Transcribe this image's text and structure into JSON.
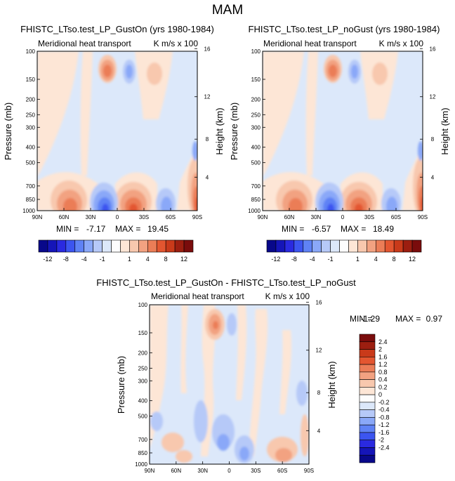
{
  "figure_title": "MAM",
  "chart_data": [
    {
      "type": "heatmap",
      "title": "FHISTC_LTso.test_LP_GustOn (yrs 1980-1984)",
      "subtitle_left": "Meridional heat transport",
      "subtitle_right": "K m/s x 100",
      "xlabel": "",
      "ylabel": "Pressure (mb)",
      "ylabel_right": "Height (km)",
      "x_ticks": [
        "90N",
        "60N",
        "30N",
        "0",
        "30S",
        "60S",
        "90S"
      ],
      "y_ticks": [
        "100",
        "150",
        "200",
        "250",
        "300",
        "400",
        "500",
        "700",
        "850",
        "1000"
      ],
      "height_ticks": [
        "16",
        "12",
        "8",
        "4"
      ],
      "stats": {
        "min": -7.17,
        "max": 19.45,
        "min_label": "MIN =",
        "max_label": "MAX =",
        "min_text": "-7.17",
        "max_text": "19.45"
      }
    },
    {
      "type": "heatmap",
      "title": "FHISTC_LTso.test_LP_noGust (yrs 1980-1984)",
      "subtitle_left": "Meridional heat transport",
      "subtitle_right": "K m/s x 100",
      "xlabel": "",
      "ylabel": "Pressure (mb)",
      "ylabel_right": "Height (km)",
      "x_ticks": [
        "90N",
        "60N",
        "30N",
        "0",
        "30S",
        "60S",
        "90S"
      ],
      "y_ticks": [
        "100",
        "150",
        "200",
        "250",
        "300",
        "400",
        "500",
        "700",
        "850",
        "1000"
      ],
      "height_ticks": [
        "16",
        "12",
        "8",
        "4"
      ],
      "stats": {
        "min": -6.57,
        "max": 18.49,
        "min_label": "MIN =",
        "max_label": "MAX =",
        "min_text": "-6.57",
        "max_text": "18.49"
      }
    },
    {
      "type": "heatmap",
      "title": "FHISTC_LTso.test_LP_GustOn - FHISTC_LTso.test_LP_noGust",
      "subtitle_left": "Meridional heat transport",
      "subtitle_right": "K m/s x 100",
      "xlabel": "",
      "ylabel": "Pressure (mb)",
      "ylabel_right": "Height (km)",
      "x_ticks": [
        "90N",
        "60N",
        "30N",
        "0",
        "30S",
        "60S",
        "90S"
      ],
      "y_ticks": [
        "100",
        "150",
        "200",
        "250",
        "300",
        "400",
        "500",
        "700",
        "850",
        "1000"
      ],
      "height_ticks": [
        "16",
        "12",
        "8",
        "4"
      ],
      "stats": {
        "min": -1.29,
        "max": 0.97,
        "min_label": "MIN =",
        "max_label": "MAX =",
        "min_text": "-1.29",
        "max_text": "0.97"
      }
    }
  ],
  "colorbar_top": {
    "colors": [
      "#08088a",
      "#1515b8",
      "#2a2ae0",
      "#3c55f0",
      "#5f82f5",
      "#8aa8f8",
      "#b6c9f8",
      "#dce8fa",
      "#fdfdfd",
      "#fde6d6",
      "#f8c8ae",
      "#f2a281",
      "#eb7d57",
      "#e35630",
      "#c93a1a",
      "#9c1e10",
      "#7a0c0c"
    ],
    "labels": [
      "-12",
      "-8",
      "-4",
      "-1",
      "1",
      "4",
      "8",
      "12"
    ]
  },
  "colorbar_diff": {
    "colors": [
      "#08088a",
      "#1515b8",
      "#2a2ae0",
      "#3c55f0",
      "#5f82f5",
      "#8aa8f8",
      "#b6c9f8",
      "#dce8fa",
      "#fdfdfd",
      "#fde6d6",
      "#f8c8ae",
      "#f2a281",
      "#eb7d57",
      "#e35630",
      "#c93a1a",
      "#9c1e10",
      "#7a0c0c"
    ],
    "labels": [
      "2.4",
      "2",
      "1.6",
      "1.2",
      "0.8",
      "0.4",
      "0.2",
      "0",
      "-0.2",
      "-0.4",
      "-0.8",
      "-1.2",
      "-1.6",
      "-2",
      "-2.4"
    ]
  },
  "palette": {
    "light_blue": "#dce8fa",
    "light_orange": "#fde6d6",
    "pale_orange": "#f8c8ae",
    "mid_orange": "#f2a281",
    "orange": "#eb7d57",
    "red": "#e35630",
    "dark_red": "#c93a1a",
    "blue_light": "#b6c9f8",
    "blue_mid": "#8aa8f8",
    "blue": "#5f82f5",
    "blue_dark": "#3c55f0"
  }
}
